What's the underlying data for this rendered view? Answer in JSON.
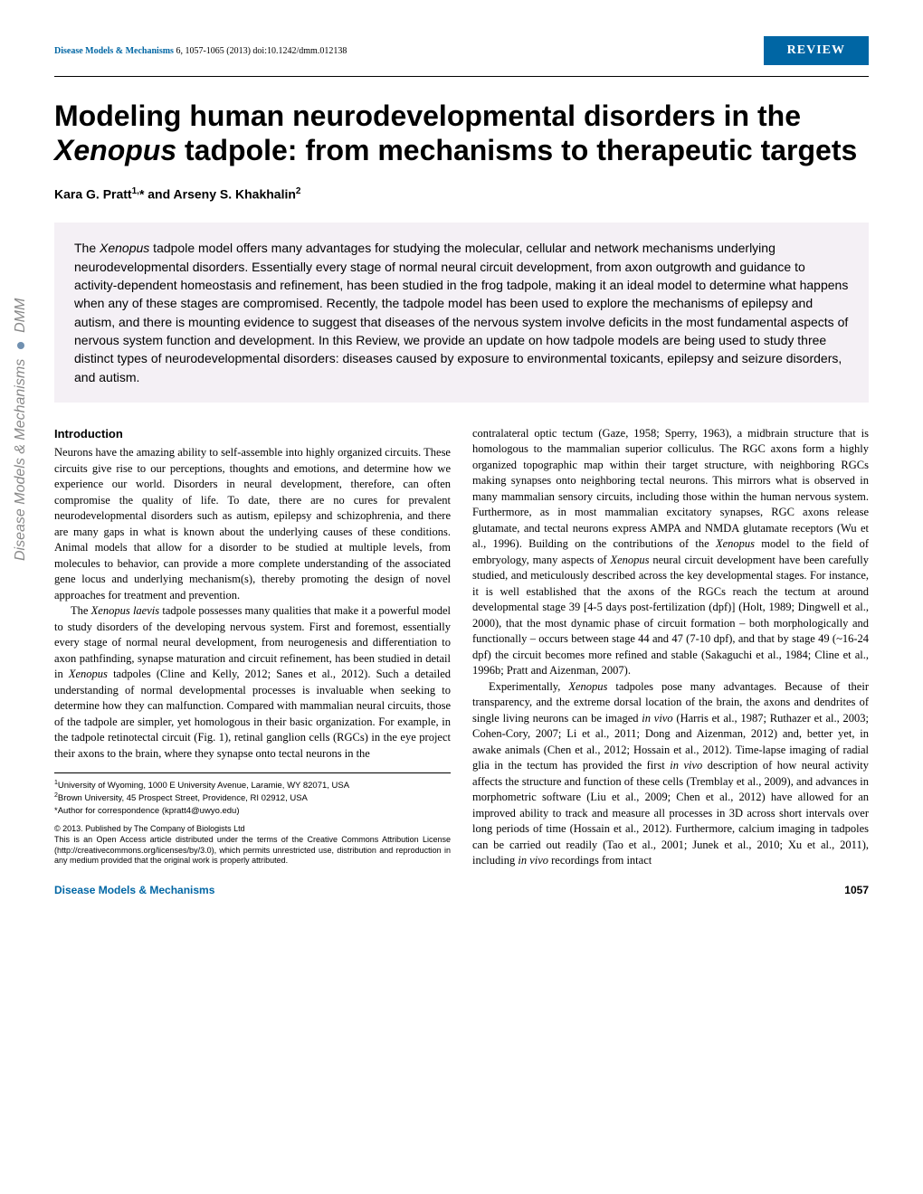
{
  "header": {
    "journal_name": "Disease Models & Mechanisms",
    "citation": " 6, 1057-1065 (2013) doi:10.1242/dmm.012138",
    "badge": "REVIEW"
  },
  "title_part1": "Modeling human neurodevelopmental disorders in the ",
  "title_italic": "Xenopus",
  "title_part2": " tadpole: from mechanisms to therapeutic targets",
  "authors_html": "Kara G. Pratt<sup>1,</sup>* and Arseny S. Khakhalin<sup>2</sup>",
  "abstract": "The <span class=\"italic\">Xenopus</span> tadpole model offers many advantages for studying the molecular, cellular and network mechanisms underlying neurodevelopmental disorders. Essentially every stage of normal neural circuit development, from axon outgrowth and guidance to activity-dependent homeostasis and refinement, has been studied in the frog tadpole, making it an ideal model to determine what happens when any of these stages are compromised. Recently, the tadpole model has been used to explore the mechanisms of epilepsy and autism, and there is mounting evidence to suggest that diseases of the nervous system involve deficits in the most fundamental aspects of nervous system function and development. In this Review, we provide an update on how tadpole models are being used to study three distinct types of neurodevelopmental disorders: diseases caused by exposure to environmental toxicants, epilepsy and seizure disorders, and autism.",
  "intro_heading": "Introduction",
  "col1_para1": "Neurons have the amazing ability to self-assemble into highly organized circuits. These circuits give rise to our perceptions, thoughts and emotions, and determine how we experience our world. Disorders in neural development, therefore, can often compromise the quality of life. To date, there are no cures for prevalent neurodevelopmental disorders such as autism, epilepsy and schizophrenia, and there are many gaps in what is known about the underlying causes of these conditions. Animal models that allow for a disorder to be studied at multiple levels, from molecules to behavior, can provide a more complete understanding of the associated gene locus and underlying mechanism(s), thereby promoting the design of novel approaches for treatment and prevention.",
  "col1_para2": "The <span class=\"italic\">Xenopus laevis</span> tadpole possesses many qualities that make it a powerful model to study disorders of the developing nervous system. First and foremost, essentially every stage of normal neural development, from neurogenesis and differentiation to axon pathfinding, synapse maturation and circuit refinement, has been studied in detail in <span class=\"italic\">Xenopus</span> tadpoles (Cline and Kelly, 2012; Sanes et al., 2012). Such a detailed understanding of normal developmental processes is invaluable when seeking to determine how they can malfunction. Compared with mammalian neural circuits, those of the tadpole are simpler, yet homologous in their basic organization. For example, in the tadpole retinotectal circuit (Fig. 1), retinal ganglion cells (RGCs) in the eye project their axons to the brain, where they synapse onto tectal neurons in the",
  "col2_para1": "contralateral optic tectum (Gaze, 1958; Sperry, 1963), a midbrain structure that is homologous to the mammalian superior colliculus. The RGC axons form a highly organized topographic map within their target structure, with neighboring RGCs making synapses onto neighboring tectal neurons. This mirrors what is observed in many mammalian sensory circuits, including those within the human nervous system. Furthermore, as in most mammalian excitatory synapses, RGC axons release glutamate, and tectal neurons express AMPA and NMDA glutamate receptors (Wu et al., 1996). Building on the contributions of the <span class=\"italic\">Xenopus</span> model to the field of embryology, many aspects of <span class=\"italic\">Xenopus</span> neural circuit development have been carefully studied, and meticulously described across the key developmental stages. For instance, it is well established that the axons of the RGCs reach the tectum at around developmental stage 39 [4-5 days post-fertilization (dpf)] (Holt, 1989; Dingwell et al., 2000), that the most dynamic phase of circuit formation – both morphologically and functionally – occurs between stage 44 and 47 (7-10 dpf), and that by stage 49 (~16-24 dpf) the circuit becomes more refined and stable (Sakaguchi et al., 1984; Cline et al., 1996b; Pratt and Aizenman, 2007).",
  "col2_para2": "Experimentally, <span class=\"italic\">Xenopus</span> tadpoles pose many advantages. Because of their transparency, and the extreme dorsal location of the brain, the axons and dendrites of single living neurons can be imaged <span class=\"italic\">in vivo</span> (Harris et al., 1987; Ruthazer et al., 2003; Cohen-Cory, 2007; Li et al., 2011; Dong and Aizenman, 2012) and, better yet, in awake animals (Chen et al., 2012; Hossain et al., 2012). Time-lapse imaging of radial glia in the tectum has provided the first <span class=\"italic\">in vivo</span> description of how neural activity affects the structure and function of these cells (Tremblay et al., 2009), and advances in morphometric software (Liu et al., 2009; Chen et al., 2012) have allowed for an improved ability to track and measure all processes in 3D across short intervals over long periods of time (Hossain et al., 2012). Furthermore, calcium imaging in tadpoles can be carried out readily (Tao et al., 2001; Junek et al., 2010; Xu et al., 2011), including <span class=\"italic\">in vivo</span> recordings from intact",
  "affiliations": {
    "a1": "<sup>1</sup>University of Wyoming, 1000 E University Avenue, Laramie, WY 82071, USA",
    "a2": "<sup>2</sup>Brown University, 45 Prospect Street, Providence, RI 02912, USA",
    "corr": "*Author for correspondence (kpratt4@uwyo.edu)"
  },
  "copyright": {
    "line1": "© 2013. Published by The Company of Biologists Ltd",
    "line2": "This is an Open Access article distributed under the terms of the Creative Commons Attribution License (http://creativecommons.org/licenses/by/3.0), which permits unrestricted use, distribution and reproduction in any medium provided that the original work is properly attributed."
  },
  "sidebar": {
    "text1": "Disease Models & Mechanisms ",
    "text2": " DMM"
  },
  "footer": {
    "journal": "Disease Models & Mechanisms",
    "page": "1057"
  },
  "colors": {
    "brand_blue": "#0066a4",
    "abstract_bg": "#f4f0f5",
    "sidebar_gray": "#888888"
  }
}
